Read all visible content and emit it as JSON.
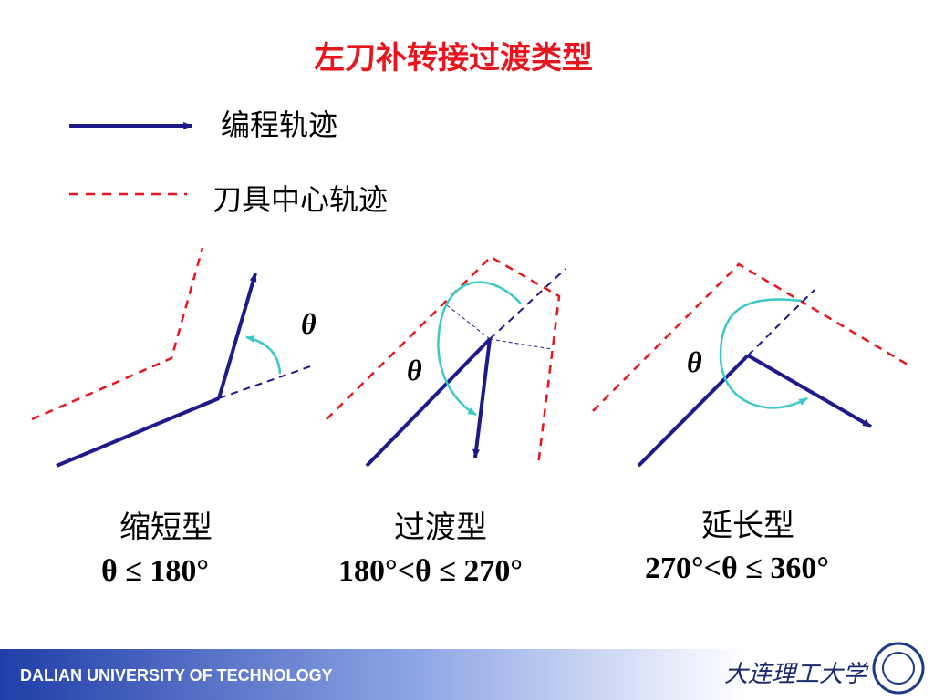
{
  "header": {
    "title": "左刀补转接过渡类型"
  },
  "legend": {
    "programmed_path": "编程轨迹",
    "tool_center_path": "刀具中心轨迹"
  },
  "diagrams": [
    {
      "angle_label": "θ",
      "name": "缩短型",
      "condition": "θ ≤ 180°"
    },
    {
      "angle_label": "θ",
      "name": "过渡型",
      "condition": "180°<θ ≤ 270°"
    },
    {
      "angle_label": "θ",
      "name": "延长型",
      "condition": "270°<θ ≤ 360°"
    }
  ],
  "footer": {
    "university": "DALIAN UNIVERSITY OF TECHNOLOGY",
    "logo_text": "大连理工大学"
  }
}
